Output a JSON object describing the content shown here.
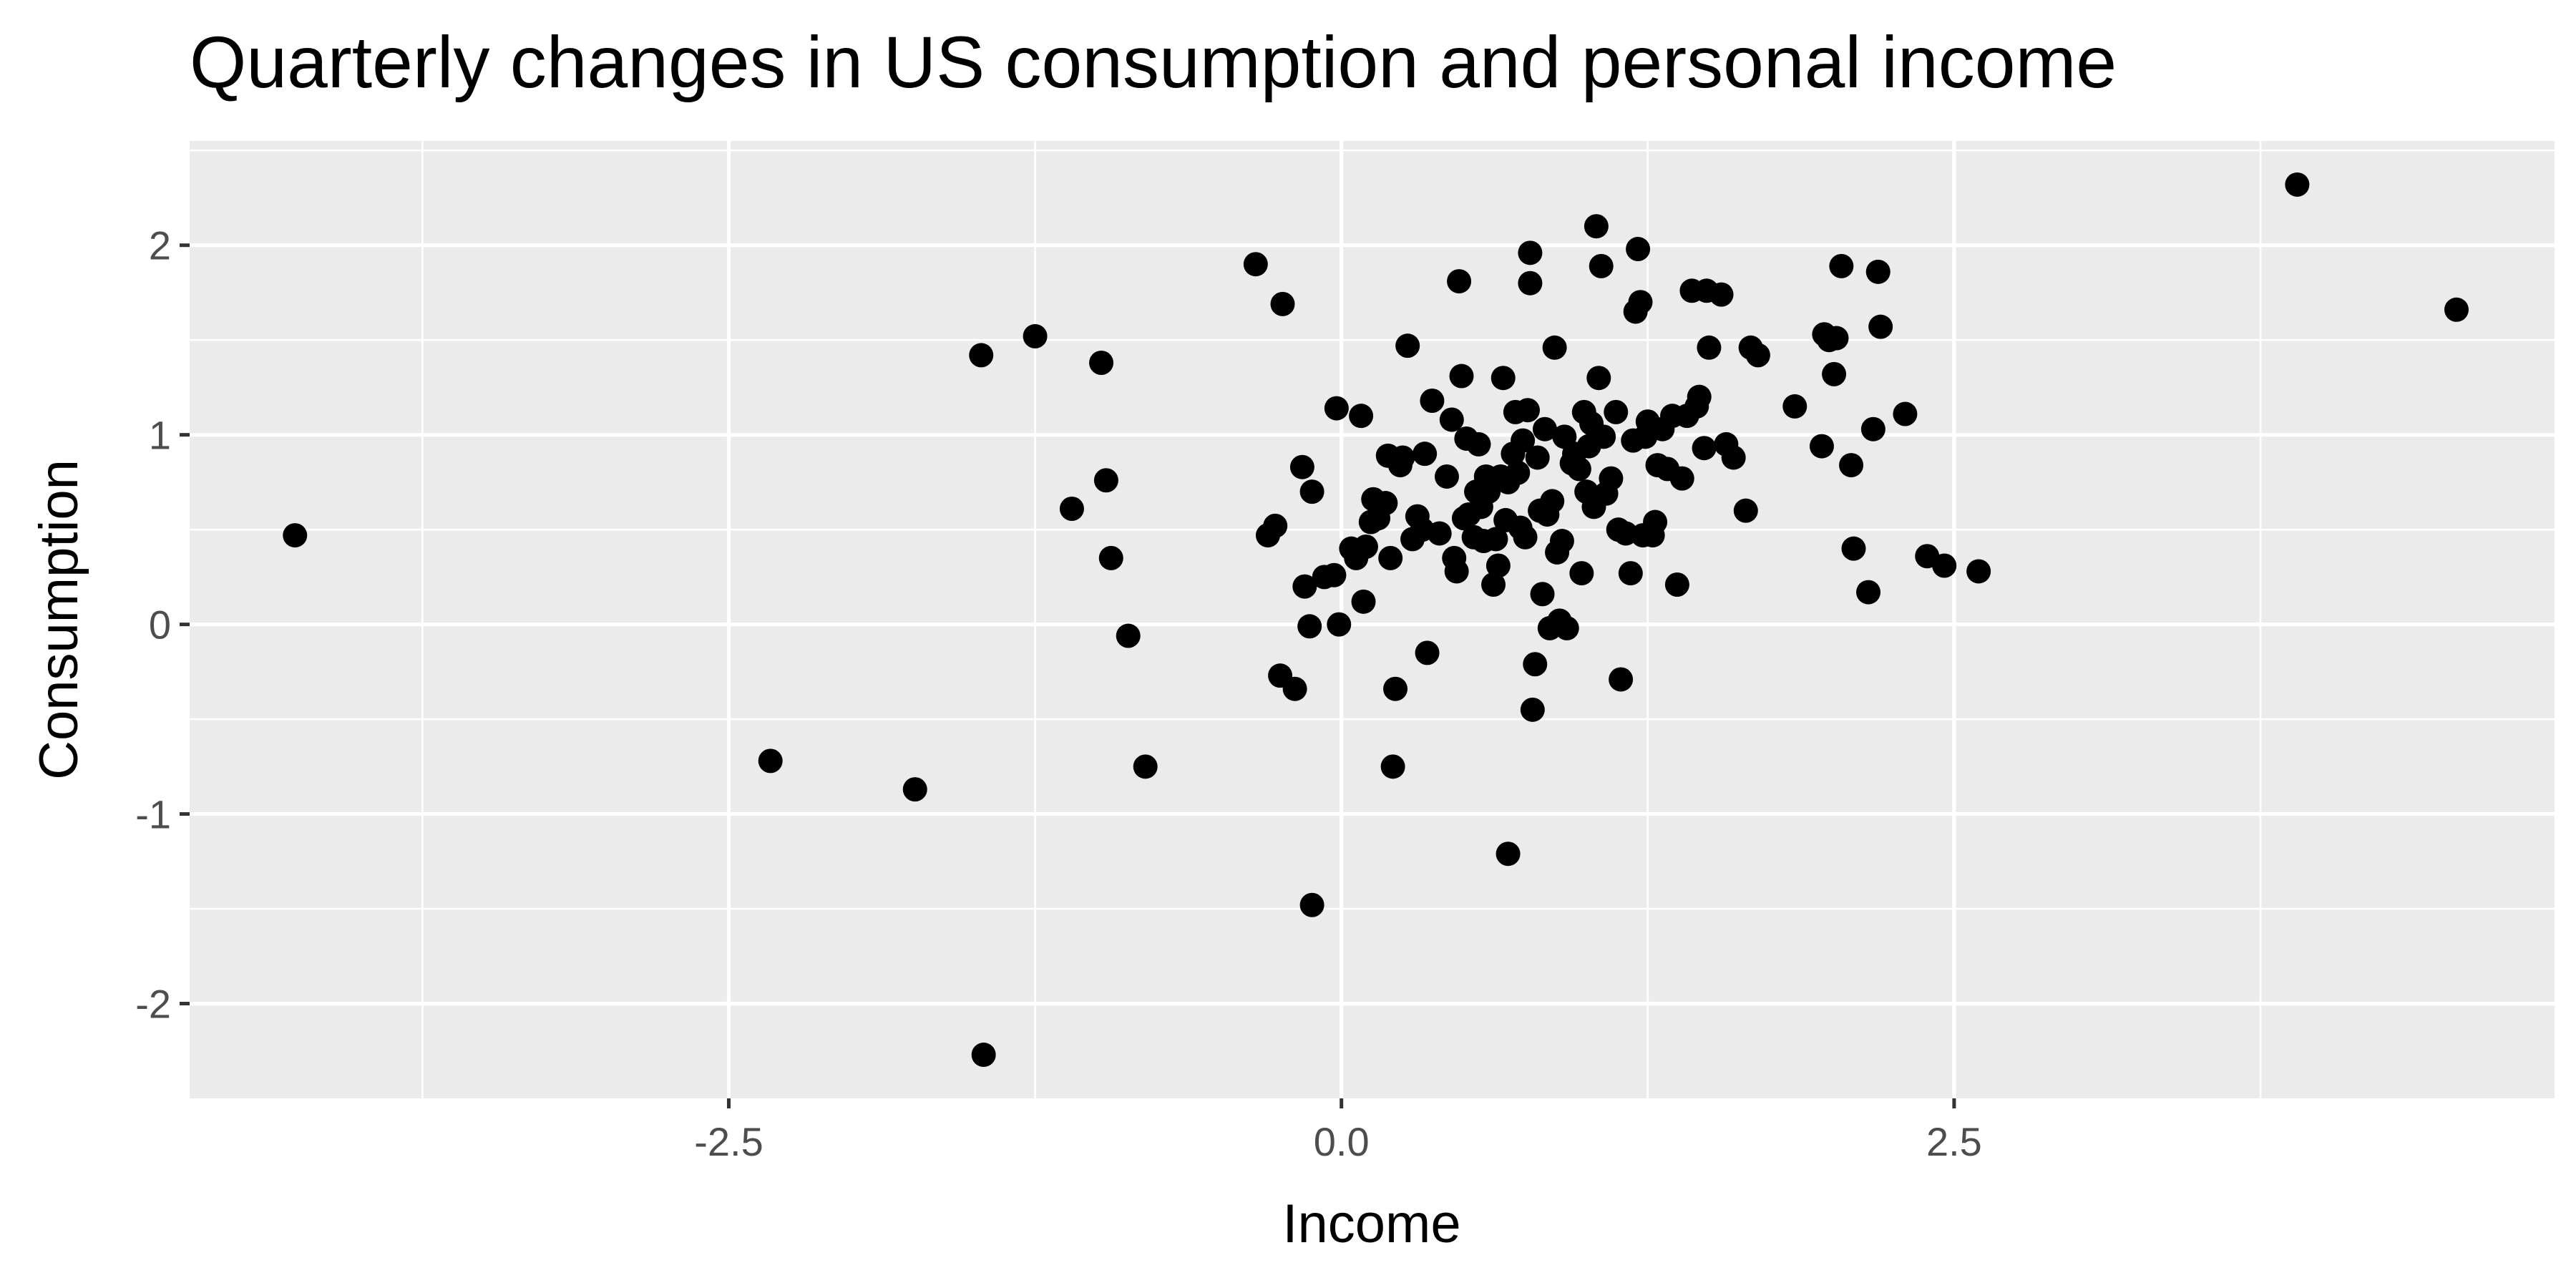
{
  "chart_data": {
    "type": "scatter",
    "title": "Quarterly changes in US consumption and personal income",
    "xlabel": "Income",
    "ylabel": "Consumption",
    "xlim": [
      -4.7,
      4.95
    ],
    "ylim": [
      -2.5,
      2.55
    ],
    "x_ticks": [
      -2.5,
      0.0,
      2.5
    ],
    "x_tick_labels": [
      "-2.5",
      "0.0",
      "2.5"
    ],
    "y_ticks": [
      -2,
      -1,
      0,
      1,
      2
    ],
    "y_tick_labels": [
      "-2",
      "-1",
      "0",
      "1",
      "2"
    ],
    "grid": true,
    "legend": "none",
    "colors": {
      "panel": "#ebebeb",
      "grid": "#ffffff",
      "point": "#000000",
      "tick": "#4d4d4d"
    },
    "points": [
      [
        -4.27,
        0.47
      ],
      [
        -2.33,
        -0.72
      ],
      [
        -1.74,
        -0.87
      ],
      [
        -1.47,
        1.42
      ],
      [
        -1.46,
        -2.27
      ],
      [
        -1.25,
        1.52
      ],
      [
        -1.1,
        0.61
      ],
      [
        -0.98,
        1.38
      ],
      [
        -0.96,
        0.76
      ],
      [
        -0.94,
        0.35
      ],
      [
        -0.87,
        -0.06
      ],
      [
        -0.8,
        -0.75
      ],
      [
        -0.35,
        1.9
      ],
      [
        -0.3,
        0.47
      ],
      [
        -0.27,
        0.52
      ],
      [
        -0.25,
        -0.27
      ],
      [
        -0.24,
        1.69
      ],
      [
        -0.19,
        -0.34
      ],
      [
        -0.16,
        0.83
      ],
      [
        -0.15,
        0.2
      ],
      [
        -0.13,
        -0.01
      ],
      [
        -0.12,
        0.7
      ],
      [
        -0.12,
        -1.48
      ],
      [
        -0.07,
        0.25
      ],
      [
        -0.03,
        0.26
      ],
      [
        -0.02,
        1.14
      ],
      [
        -0.01,
        0.0
      ],
      [
        0.04,
        0.4
      ],
      [
        0.06,
        0.35
      ],
      [
        0.08,
        1.1
      ],
      [
        0.09,
        0.12
      ],
      [
        0.1,
        0.41
      ],
      [
        0.12,
        0.54
      ],
      [
        0.13,
        0.66
      ],
      [
        0.15,
        0.56
      ],
      [
        0.18,
        0.64
      ],
      [
        0.19,
        0.89
      ],
      [
        0.2,
        0.35
      ],
      [
        0.21,
        -0.75
      ],
      [
        0.22,
        -0.34
      ],
      [
        0.24,
        0.84
      ],
      [
        0.25,
        0.88
      ],
      [
        0.27,
        1.47
      ],
      [
        0.29,
        0.45
      ],
      [
        0.31,
        0.57
      ],
      [
        0.33,
        0.5
      ],
      [
        0.34,
        0.9
      ],
      [
        0.35,
        -0.15
      ],
      [
        0.37,
        1.18
      ],
      [
        0.4,
        0.48
      ],
      [
        0.43,
        0.78
      ],
      [
        0.45,
        1.08
      ],
      [
        0.46,
        0.35
      ],
      [
        0.47,
        0.28
      ],
      [
        0.48,
        1.81
      ],
      [
        0.49,
        1.31
      ],
      [
        0.5,
        0.56
      ],
      [
        0.51,
        0.98
      ],
      [
        0.52,
        0.58
      ],
      [
        0.54,
        0.46
      ],
      [
        0.55,
        0.7
      ],
      [
        0.56,
        0.95
      ],
      [
        0.57,
        0.62
      ],
      [
        0.58,
        0.44
      ],
      [
        0.59,
        0.78
      ],
      [
        0.6,
        0.7
      ],
      [
        0.62,
        0.21
      ],
      [
        0.63,
        0.45
      ],
      [
        0.64,
        0.31
      ],
      [
        0.65,
        0.78
      ],
      [
        0.66,
        1.3
      ],
      [
        0.67,
        0.55
      ],
      [
        0.68,
        0.75
      ],
      [
        0.68,
        -1.21
      ],
      [
        0.7,
        0.9
      ],
      [
        0.71,
        1.12
      ],
      [
        0.72,
        0.8
      ],
      [
        0.73,
        0.51
      ],
      [
        0.74,
        0.97
      ],
      [
        0.75,
        0.46
      ],
      [
        0.76,
        1.13
      ],
      [
        0.77,
        1.8
      ],
      [
        0.77,
        1.96
      ],
      [
        0.78,
        -0.45
      ],
      [
        0.79,
        -0.21
      ],
      [
        0.8,
        0.88
      ],
      [
        0.81,
        0.6
      ],
      [
        0.82,
        0.16
      ],
      [
        0.83,
        1.03
      ],
      [
        0.84,
        0.58
      ],
      [
        0.85,
        -0.02
      ],
      [
        0.86,
        0.65
      ],
      [
        0.87,
        1.46
      ],
      [
        0.88,
        0.38
      ],
      [
        0.89,
        0.02
      ],
      [
        0.9,
        0.44
      ],
      [
        0.91,
        0.99
      ],
      [
        0.92,
        -0.02
      ],
      [
        0.94,
        0.85
      ],
      [
        0.95,
        0.9
      ],
      [
        0.97,
        0.82
      ],
      [
        0.98,
        0.27
      ],
      [
        0.99,
        1.12
      ],
      [
        1.0,
        0.7
      ],
      [
        1.01,
        0.94
      ],
      [
        1.02,
        1.06
      ],
      [
        1.03,
        0.62
      ],
      [
        1.04,
        2.1
      ],
      [
        1.05,
        1.3
      ],
      [
        1.06,
        1.89
      ],
      [
        1.07,
        0.99
      ],
      [
        1.08,
        0.69
      ],
      [
        1.1,
        0.77
      ],
      [
        1.12,
        1.12
      ],
      [
        1.13,
        0.5
      ],
      [
        1.14,
        -0.29
      ],
      [
        1.16,
        0.48
      ],
      [
        1.18,
        0.27
      ],
      [
        1.19,
        0.97
      ],
      [
        1.2,
        1.65
      ],
      [
        1.21,
        1.98
      ],
      [
        1.22,
        1.7
      ],
      [
        1.23,
        0.47
      ],
      [
        1.24,
        0.99
      ],
      [
        1.25,
        1.07
      ],
      [
        1.27,
        0.47
      ],
      [
        1.28,
        0.54
      ],
      [
        1.29,
        0.84
      ],
      [
        1.31,
        1.03
      ],
      [
        1.33,
        0.82
      ],
      [
        1.35,
        1.1
      ],
      [
        1.37,
        0.21
      ],
      [
        1.39,
        0.77
      ],
      [
        1.41,
        1.1
      ],
      [
        1.43,
        1.76
      ],
      [
        1.45,
        1.15
      ],
      [
        1.46,
        1.2
      ],
      [
        1.48,
        0.93
      ],
      [
        1.49,
        1.76
      ],
      [
        1.5,
        1.46
      ],
      [
        1.55,
        1.74
      ],
      [
        1.57,
        0.95
      ],
      [
        1.6,
        0.88
      ],
      [
        1.65,
        0.6
      ],
      [
        1.67,
        1.46
      ],
      [
        1.7,
        1.42
      ],
      [
        1.85,
        1.15
      ],
      [
        1.96,
        0.94
      ],
      [
        1.97,
        1.53
      ],
      [
        1.99,
        1.5
      ],
      [
        2.01,
        1.32
      ],
      [
        2.02,
        1.51
      ],
      [
        2.04,
        1.89
      ],
      [
        2.08,
        0.84
      ],
      [
        2.09,
        0.4
      ],
      [
        2.15,
        0.17
      ],
      [
        2.17,
        1.03
      ],
      [
        2.19,
        1.86
      ],
      [
        2.2,
        1.57
      ],
      [
        2.3,
        1.11
      ],
      [
        2.39,
        0.36
      ],
      [
        2.46,
        0.31
      ],
      [
        2.6,
        0.28
      ],
      [
        3.9,
        2.32
      ],
      [
        4.55,
        1.66
      ]
    ]
  }
}
